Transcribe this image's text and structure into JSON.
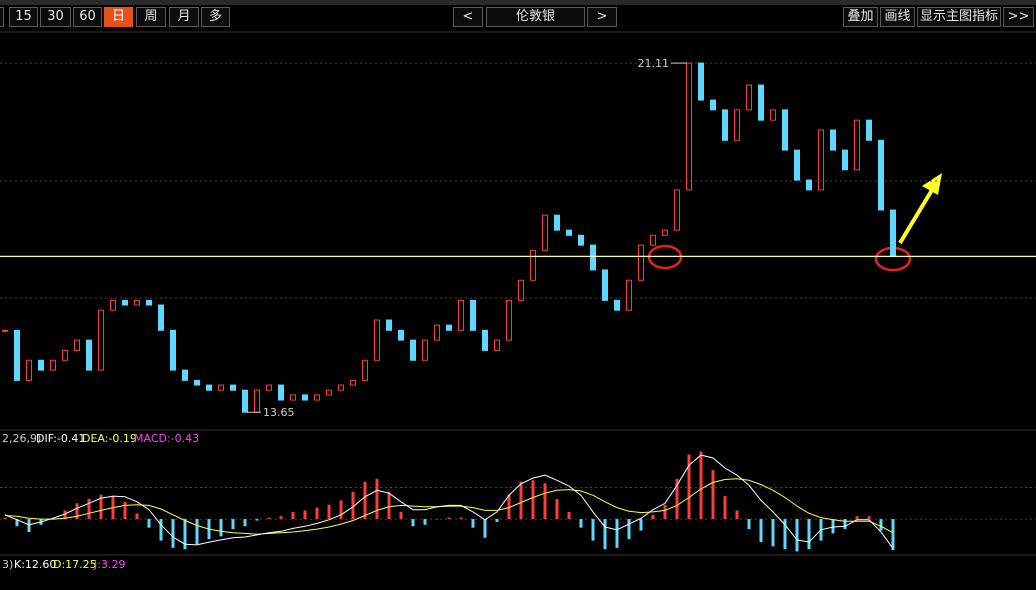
{
  "toolbar": {
    "periods": [
      "15",
      "30",
      "60",
      "日",
      "周",
      "月",
      "多"
    ],
    "prev": "<",
    "symbol": "伦敦银",
    "next": ">",
    "actions": [
      "叠加",
      "画线",
      "显示主图指标",
      ">>"
    ]
  },
  "chart_data": [
    {
      "type": "candlestick",
      "values": [
        15.4,
        14.33,
        14.76,
        14.55,
        14.76,
        14.97,
        15.19,
        14.55,
        15.83,
        16.04,
        15.94,
        16.04,
        15.94,
        15.4,
        14.55,
        14.33,
        14.23,
        14.12,
        14.23,
        14.12,
        13.65,
        14.12,
        14.23,
        13.91,
        14.02,
        13.91,
        14.02,
        14.12,
        14.23,
        14.33,
        14.76,
        15.62,
        15.4,
        15.19,
        14.76,
        15.19,
        15.51,
        15.4,
        16.04,
        15.4,
        14.97,
        15.19,
        16.04,
        16.47,
        17.11,
        17.86,
        17.54,
        17.43,
        17.22,
        16.69,
        16.04,
        15.83,
        16.47,
        17.22,
        17.43,
        17.54,
        18.4,
        21.11,
        20.32,
        20.11,
        19.46,
        20.11,
        20.64,
        19.89,
        20.11,
        19.25,
        18.61,
        18.4,
        19.68,
        19.25,
        18.83,
        19.89,
        19.46,
        17.97,
        16.98
      ],
      "ylim": [
        13.27,
        21.71
      ],
      "grid_levels": [
        21.11,
        18.59,
        16.09
      ],
      "support_level": 16.98,
      "up_color": "#ff3b3b",
      "down_color": "#5fd7ff",
      "support_color": "#ffff9a"
    },
    {
      "type": "macd",
      "labels": [
        "2,26,9)",
        "DIF:-0.41",
        "DEA:-0.19",
        "MACD:-0.43"
      ],
      "dif": [
        0.06,
        -0.01,
        -0.08,
        -0.04,
        0.01,
        0.07,
        0.15,
        0.22,
        0.29,
        0.32,
        0.31,
        0.24,
        0.13,
        -0.08,
        -0.25,
        -0.35,
        -0.36,
        -0.32,
        -0.29,
        -0.26,
        -0.25,
        -0.22,
        -0.19,
        -0.17,
        -0.13,
        -0.1,
        -0.06,
        -0.01,
        0.06,
        0.17,
        0.31,
        0.4,
        0.36,
        0.24,
        0.13,
        0.13,
        0.17,
        0.19,
        0.19,
        0.1,
        -0.01,
        0.1,
        0.33,
        0.49,
        0.57,
        0.61,
        0.54,
        0.46,
        0.33,
        0.1,
        -0.11,
        -0.15,
        -0.07,
        0.01,
        0.13,
        0.22,
        0.47,
        0.75,
        0.89,
        0.85,
        0.71,
        0.61,
        0.47,
        0.26,
        0.1,
        -0.08,
        -0.29,
        -0.32,
        -0.15,
        -0.11,
        -0.1,
        -0.01,
        -0.01,
        -0.18,
        -0.41
      ],
      "dea": [
        0.05,
        0.04,
        0.01,
        0.0,
        0.0,
        0.01,
        0.04,
        0.08,
        0.12,
        0.16,
        0.19,
        0.2,
        0.19,
        0.14,
        0.06,
        -0.02,
        -0.09,
        -0.14,
        -0.17,
        -0.19,
        -0.2,
        -0.21,
        -0.2,
        -0.19,
        -0.18,
        -0.16,
        -0.14,
        -0.11,
        -0.07,
        -0.02,
        0.05,
        0.12,
        0.17,
        0.19,
        0.18,
        0.17,
        0.17,
        0.18,
        0.18,
        0.16,
        0.12,
        0.12,
        0.16,
        0.23,
        0.3,
        0.36,
        0.4,
        0.41,
        0.39,
        0.33,
        0.24,
        0.16,
        0.11,
        0.09,
        0.1,
        0.12,
        0.19,
        0.3,
        0.42,
        0.51,
        0.55,
        0.56,
        0.54,
        0.48,
        0.4,
        0.3,
        0.18,
        0.08,
        0.02,
        -0.01,
        -0.03,
        -0.03,
        -0.03,
        -0.1,
        -0.19
      ],
      "macd": [
        0.02,
        -0.1,
        -0.18,
        -0.08,
        0.02,
        0.12,
        0.22,
        0.28,
        0.34,
        0.32,
        0.24,
        0.08,
        -0.12,
        -0.3,
        -0.4,
        -0.42,
        -0.35,
        -0.28,
        -0.24,
        -0.14,
        -0.1,
        -0.02,
        0.02,
        0.04,
        0.1,
        0.12,
        0.16,
        0.2,
        0.26,
        0.38,
        0.52,
        0.56,
        0.38,
        0.1,
        -0.1,
        -0.08,
        0,
        0.02,
        0.02,
        -0.12,
        -0.26,
        -0.04,
        0.34,
        0.52,
        0.54,
        0.5,
        0.28,
        0.1,
        -0.12,
        -0.3,
        -0.42,
        -0.4,
        -0.28,
        -0.16,
        0.06,
        0.2,
        0.56,
        0.9,
        0.94,
        0.68,
        0.32,
        0.12,
        -0.14,
        -0.32,
        -0.38,
        -0.42,
        -0.45,
        -0.42,
        -0.3,
        -0.2,
        -0.14,
        0.04,
        0.04,
        -0.16,
        -0.43
      ],
      "ylim": [
        -0.5,
        1.1
      ],
      "grid_levels": [
        0.44,
        0
      ],
      "colors": {
        "dif": "#ffffff",
        "dea": "#ffff40",
        "up": "#ff3b3b",
        "down": "#5fd7ff"
      }
    },
    {
      "type": "kdj",
      "labels": [
        "3)",
        "K:12.60",
        "D:17.25",
        "J:3.29"
      ]
    }
  ]
}
